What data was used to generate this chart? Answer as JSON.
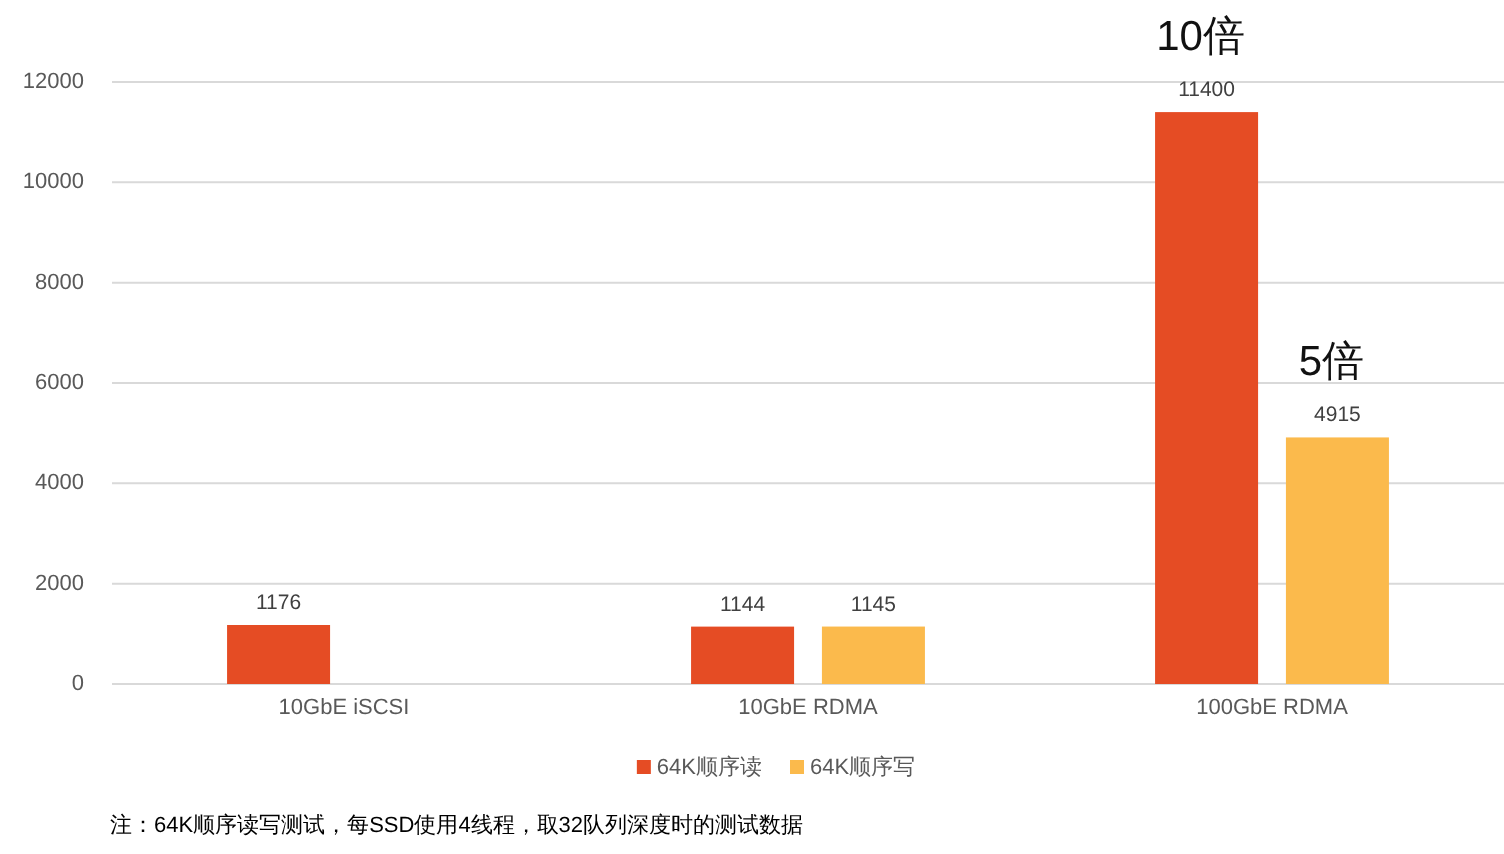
{
  "chart_data": {
    "type": "bar",
    "categories": [
      "10GbE iSCSI",
      "10GbE RDMA",
      "100GbE RDMA"
    ],
    "series": [
      {
        "name": "64K顺序读",
        "color": "#e54c24",
        "values": [
          1176,
          1144,
          11400
        ]
      },
      {
        "name": "64K顺序写",
        "color": "#fbba4c",
        "values": [
          null,
          1145,
          4915
        ]
      }
    ],
    "ylim": [
      0,
      12000
    ],
    "yticks": [
      0,
      2000,
      4000,
      6000,
      8000,
      10000,
      12000
    ],
    "grid": "y",
    "legend": "bottom",
    "data_labels": true,
    "annotations": [
      "10倍",
      "5倍",
      "注：64K顺序读写测试，每SSD使用4线程，取32队列深度时的测试数据"
    ]
  }
}
